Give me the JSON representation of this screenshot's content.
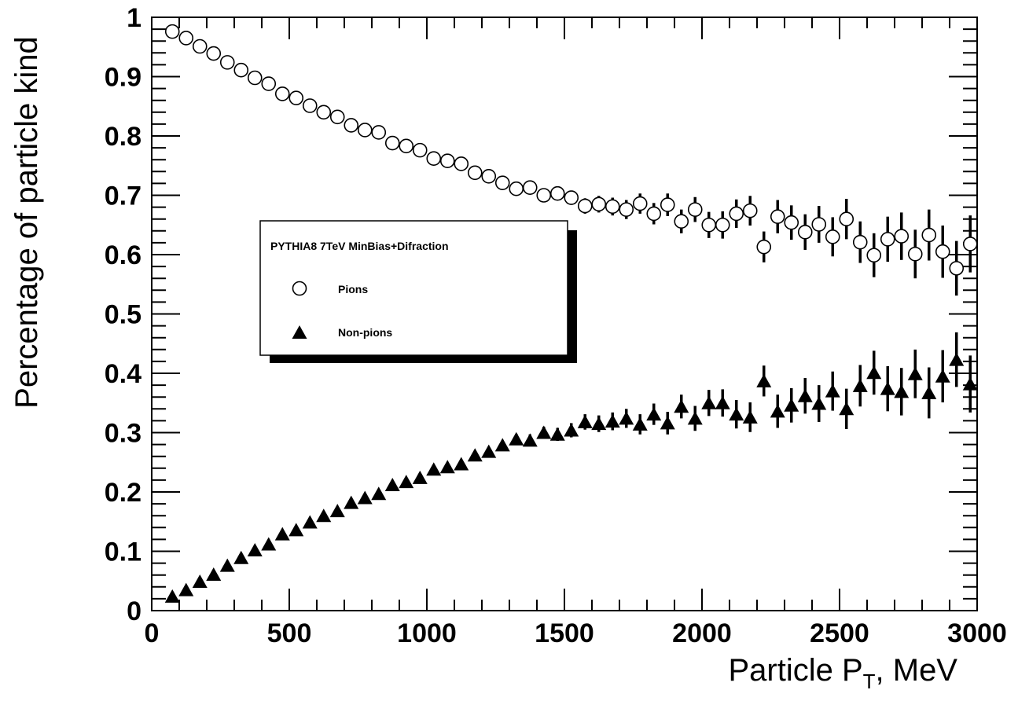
{
  "chart_data": {
    "type": "scatter",
    "title": "",
    "xlabel": "Particle P",
    "xlabel_sub": "T",
    "xlabel_suffix": ", MeV",
    "ylabel": "Percentage of particle kind",
    "xlim": [
      0,
      3000
    ],
    "ylim": [
      0,
      1
    ],
    "x_ticks": [
      0,
      500,
      1000,
      1500,
      2000,
      2500,
      3000
    ],
    "y_ticks": [
      0,
      0.1,
      0.2,
      0.3,
      0.4,
      0.5,
      0.6,
      0.7,
      0.8,
      0.9,
      1
    ],
    "y_tick_labels": [
      "0",
      "0.1",
      "0.2",
      "0.3",
      "0.4",
      "0.5",
      "0.6",
      "0.7",
      "0.8",
      "0.9",
      "1"
    ],
    "grid": false,
    "legend": {
      "placement": "center-left",
      "header": "PYTHIA8 7TeV MinBias+Difraction",
      "entries": [
        "Pions",
        "Non-pions"
      ]
    },
    "x": [
      75,
      125,
      175,
      225,
      275,
      325,
      375,
      425,
      475,
      525,
      575,
      625,
      675,
      725,
      775,
      825,
      875,
      925,
      975,
      1025,
      1075,
      1125,
      1175,
      1225,
      1275,
      1325,
      1375,
      1425,
      1475,
      1525,
      1575,
      1625,
      1675,
      1725,
      1775,
      1825,
      1875,
      1925,
      1975,
      2025,
      2075,
      2125,
      2175,
      2225,
      2275,
      2325,
      2375,
      2425,
      2475,
      2525,
      2575,
      2625,
      2675,
      2725,
      2775,
      2825,
      2875,
      2925,
      2975
    ],
    "series": [
      {
        "name": "Pions",
        "marker": "open-circle",
        "values": [
          0.976,
          0.965,
          0.951,
          0.939,
          0.924,
          0.911,
          0.898,
          0.888,
          0.871,
          0.864,
          0.851,
          0.84,
          0.832,
          0.818,
          0.81,
          0.806,
          0.788,
          0.783,
          0.776,
          0.762,
          0.758,
          0.753,
          0.738,
          0.732,
          0.721,
          0.711,
          0.713,
          0.7,
          0.703,
          0.696,
          0.682,
          0.685,
          0.681,
          0.676,
          0.686,
          0.669,
          0.684,
          0.656,
          0.676,
          0.65,
          0.65,
          0.669,
          0.674,
          0.613,
          0.664,
          0.654,
          0.638,
          0.651,
          0.63,
          0.66,
          0.621,
          0.599,
          0.626,
          0.631,
          0.601,
          0.633,
          0.605,
          0.577,
          0.618
        ],
        "errors": [
          0.002,
          0.002,
          0.002,
          0.002,
          0.002,
          0.002,
          0.002,
          0.003,
          0.003,
          0.003,
          0.003,
          0.003,
          0.004,
          0.004,
          0.004,
          0.004,
          0.005,
          0.005,
          0.005,
          0.006,
          0.006,
          0.007,
          0.007,
          0.008,
          0.008,
          0.009,
          0.01,
          0.01,
          0.011,
          0.012,
          0.013,
          0.014,
          0.015,
          0.016,
          0.017,
          0.018,
          0.019,
          0.02,
          0.021,
          0.022,
          0.023,
          0.024,
          0.025,
          0.026,
          0.028,
          0.029,
          0.03,
          0.031,
          0.033,
          0.034,
          0.035,
          0.037,
          0.038,
          0.04,
          0.041,
          0.043,
          0.044,
          0.046,
          0.048
        ]
      },
      {
        "name": "Non-pions",
        "marker": "filled-triangle",
        "values": [
          0.024,
          0.035,
          0.049,
          0.061,
          0.076,
          0.089,
          0.102,
          0.112,
          0.129,
          0.136,
          0.149,
          0.16,
          0.168,
          0.182,
          0.19,
          0.197,
          0.212,
          0.217,
          0.224,
          0.238,
          0.242,
          0.247,
          0.262,
          0.268,
          0.279,
          0.289,
          0.287,
          0.3,
          0.297,
          0.304,
          0.318,
          0.315,
          0.319,
          0.324,
          0.314,
          0.331,
          0.316,
          0.344,
          0.324,
          0.35,
          0.35,
          0.331,
          0.326,
          0.387,
          0.336,
          0.346,
          0.362,
          0.349,
          0.37,
          0.34,
          0.379,
          0.401,
          0.374,
          0.369,
          0.399,
          0.367,
          0.395,
          0.423,
          0.382
        ],
        "errors": [
          0.002,
          0.002,
          0.002,
          0.002,
          0.002,
          0.002,
          0.002,
          0.003,
          0.003,
          0.003,
          0.003,
          0.003,
          0.004,
          0.004,
          0.004,
          0.004,
          0.005,
          0.005,
          0.005,
          0.006,
          0.006,
          0.007,
          0.007,
          0.008,
          0.008,
          0.009,
          0.01,
          0.01,
          0.011,
          0.012,
          0.013,
          0.014,
          0.015,
          0.016,
          0.017,
          0.018,
          0.019,
          0.02,
          0.021,
          0.022,
          0.023,
          0.024,
          0.025,
          0.026,
          0.028,
          0.029,
          0.03,
          0.031,
          0.033,
          0.034,
          0.035,
          0.037,
          0.038,
          0.04,
          0.041,
          0.043,
          0.044,
          0.046,
          0.048
        ]
      }
    ]
  }
}
